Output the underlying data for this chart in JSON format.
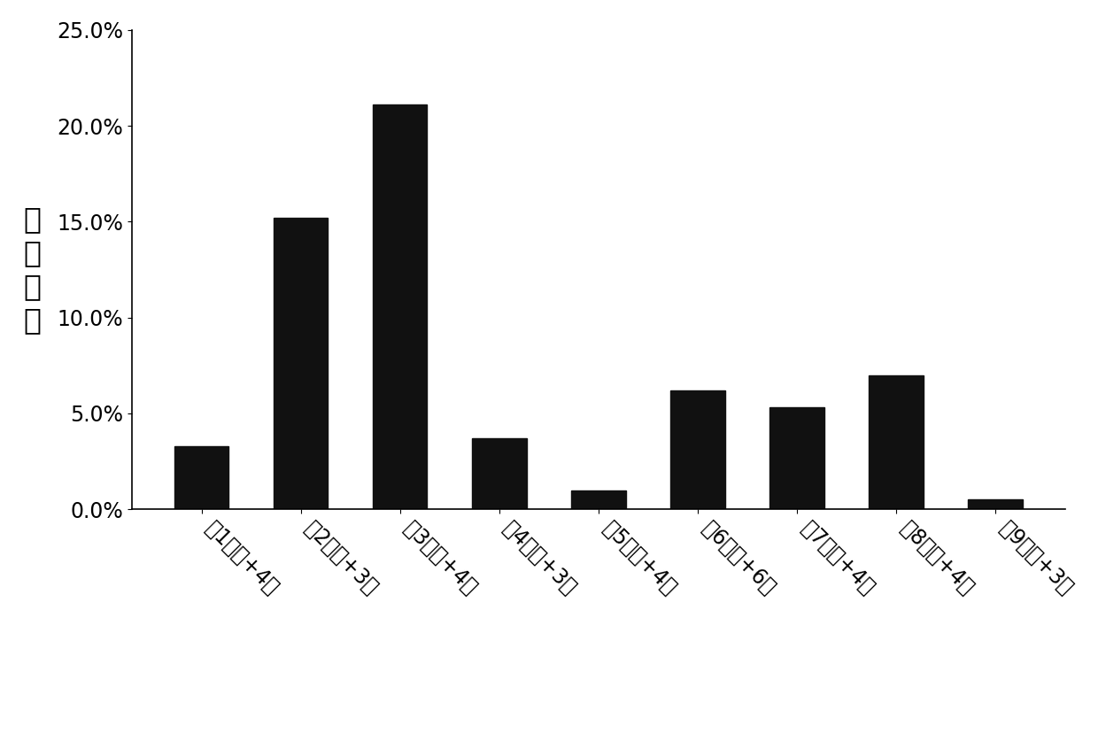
{
  "categories": [
    "第1批次+4天",
    "第2批次+3天",
    "第3批次+4天",
    "第4批次+3天",
    "第5批次+4天",
    "第6批次+6天",
    "第7批次+4天",
    "第8批次+4天",
    "第9批次+3天"
  ],
  "values": [
    0.033,
    0.152,
    0.211,
    0.037,
    0.01,
    0.062,
    0.053,
    0.07,
    0.005
  ],
  "bar_color": "#111111",
  "ylabel": "籍粒占比",
  "ylim": [
    0,
    0.25
  ],
  "yticks": [
    0.0,
    0.05,
    0.1,
    0.15,
    0.2,
    0.25
  ],
  "background_color": "#ffffff",
  "bar_width": 0.55,
  "ylabel_fontsize": 24,
  "tick_fontsize": 17,
  "xtick_fontsize": 17
}
